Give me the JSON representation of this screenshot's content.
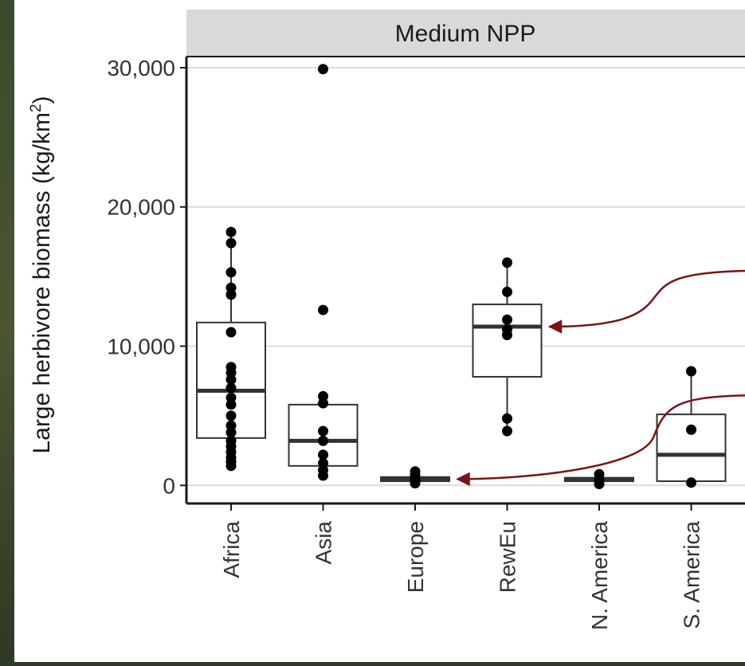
{
  "chart_data": {
    "type": "box",
    "title": "",
    "facet_label": "Medium NPP",
    "ylabel": "Large herbivore biomass (kg/km",
    "ylabel_superscript": "2",
    "ylabel_close": ")",
    "xlabel": "",
    "ylim": [
      -1300,
      30800
    ],
    "yticks": [
      {
        "value": 0,
        "label": "0"
      },
      {
        "value": 10000,
        "label": "10,000"
      },
      {
        "value": 20000,
        "label": "20,000"
      },
      {
        "value": 30000,
        "label": "30,000"
      }
    ],
    "grid": true,
    "categories": [
      "Africa",
      "Asia",
      "Europe",
      "RewEu",
      "N. America",
      "S. America"
    ],
    "boxes": [
      {
        "category": "Africa",
        "q1": 3400,
        "median": 6800,
        "q3": 11700,
        "whisker_low": 1400,
        "whisker_high": 18200,
        "points": [
          1400,
          1700,
          2000,
          2400,
          2800,
          3200,
          3800,
          4300,
          5000,
          5800,
          6300,
          7000,
          7600,
          8100,
          8500,
          11000,
          13700,
          14200,
          15300,
          17400,
          18200
        ]
      },
      {
        "category": "Asia",
        "q1": 1400,
        "median": 3200,
        "q3": 5800,
        "whisker_low": 700,
        "whisker_high": 6400,
        "points": [
          700,
          1100,
          1600,
          2200,
          3200,
          3900,
          5900,
          6400,
          12600,
          29900
        ]
      },
      {
        "category": "Europe",
        "q1": 300,
        "median": 450,
        "q3": 600,
        "whisker_low": 150,
        "whisker_high": 1000,
        "points": [
          150,
          350,
          550,
          750,
          1000
        ]
      },
      {
        "category": "RewEu",
        "q1": 7800,
        "median": 11400,
        "q3": 13000,
        "whisker_low": 3800,
        "whisker_high": 16000,
        "points": [
          3900,
          4800,
          10800,
          11200,
          11900,
          13900,
          16000
        ]
      },
      {
        "category": "N. America",
        "q1": 300,
        "median": 400,
        "q3": 550,
        "whisker_low": 100,
        "whisker_high": 800,
        "points": [
          100,
          400,
          800
        ]
      },
      {
        "category": "S. America",
        "q1": 300,
        "median": 2200,
        "q3": 5100,
        "whisker_low": 200,
        "whisker_high": 8200,
        "points": [
          200,
          4000,
          8200
        ]
      }
    ],
    "annotations": [
      {
        "type": "arrow",
        "target_category": "RewEu",
        "target_value": 11400
      },
      {
        "type": "arrow",
        "target_category": "Europe",
        "target_value": 450
      }
    ],
    "colors": {
      "box_fill": "#ffffff",
      "box_stroke": "#333333",
      "median": "#333333",
      "point": "#000000",
      "grid": "#dcdcdc",
      "strip": "#d9d9d9",
      "arrow": "#7a1414",
      "background_photo": "#2f3a28"
    }
  }
}
